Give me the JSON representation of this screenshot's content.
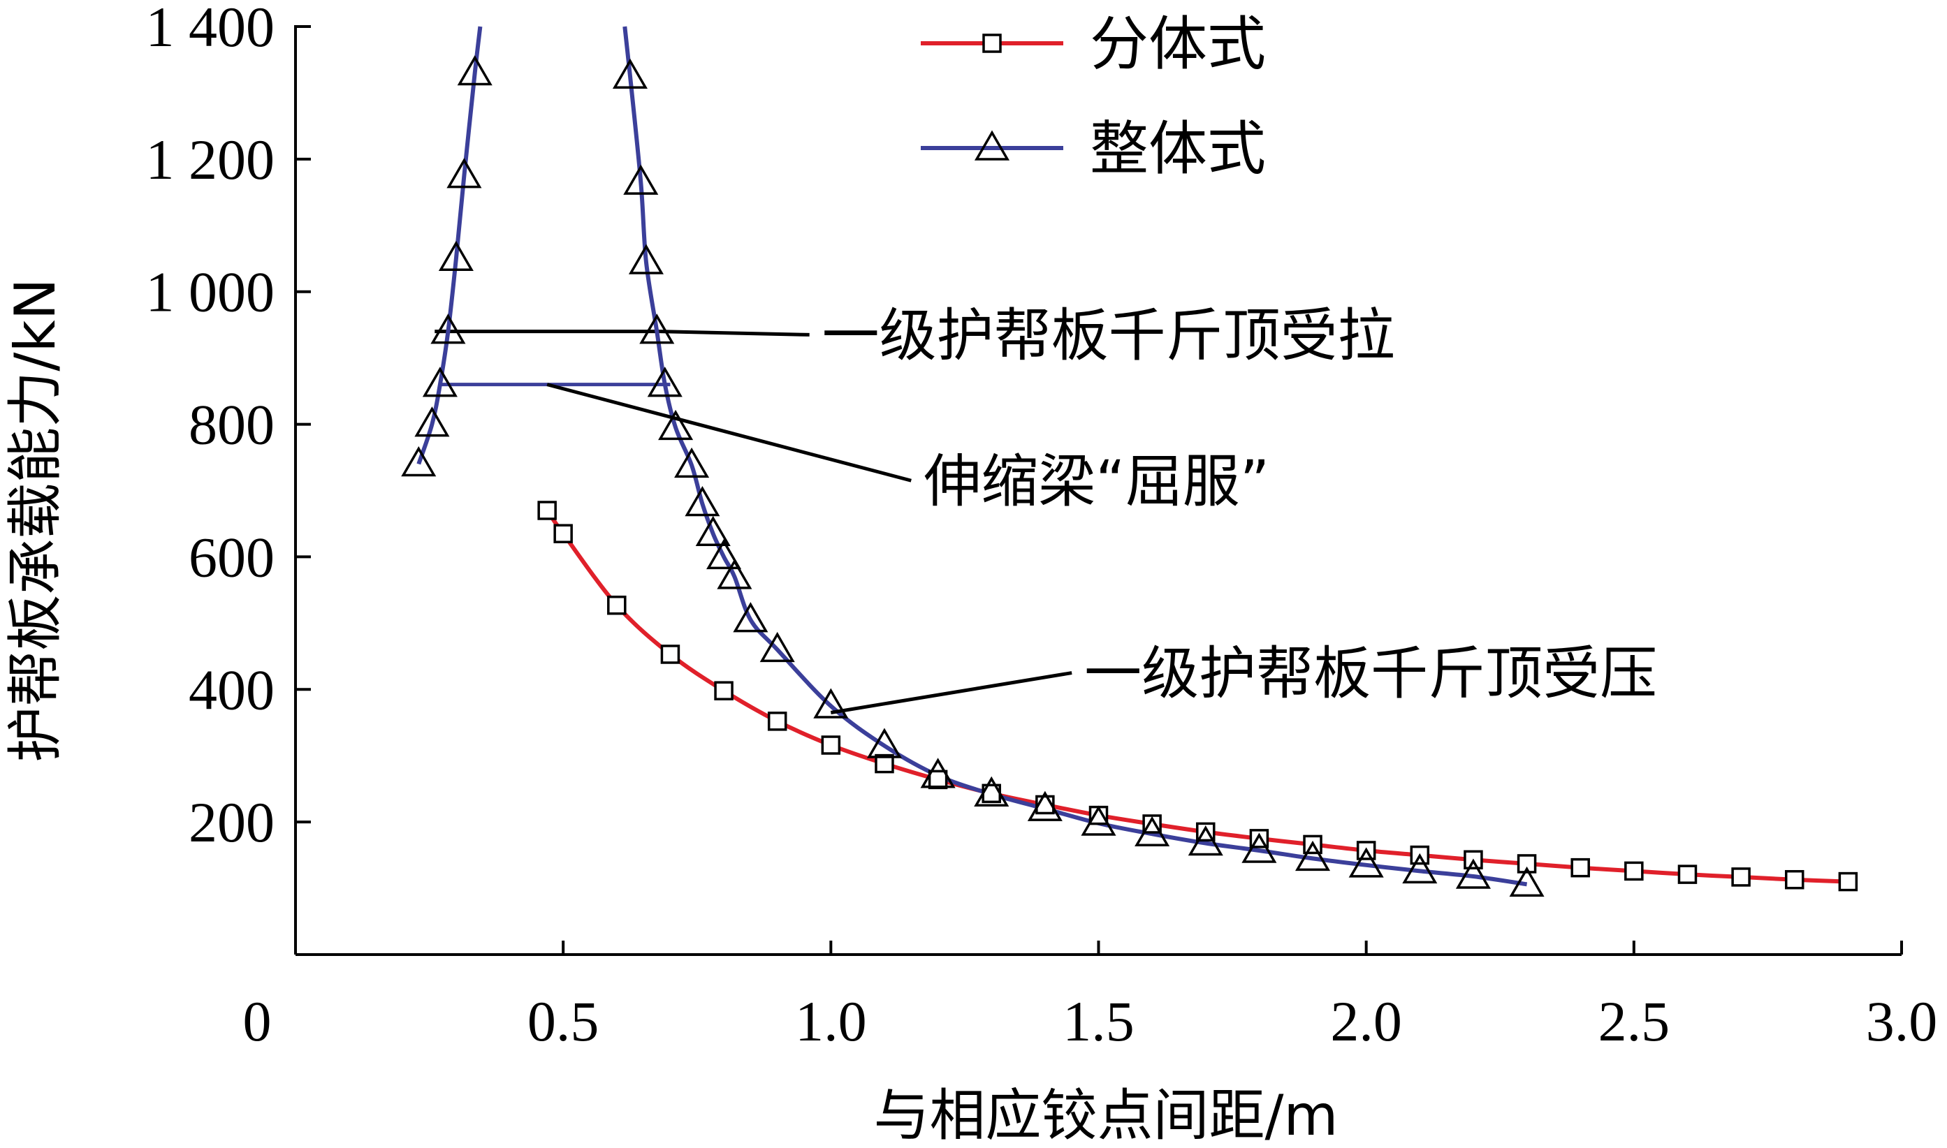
{
  "chart_data": {
    "type": "line",
    "xlabel": "与相应铰点间距/m",
    "ylabel": "护帮板承载能力/kN",
    "xlim": [
      0,
      3.0
    ],
    "ylim": [
      0,
      1400
    ],
    "x_ticks": [
      0,
      0.5,
      1.0,
      1.5,
      2.0,
      2.5,
      3.0
    ],
    "x_tick_labels": [
      "0",
      "0.5",
      "1.0",
      "1.5",
      "2.0",
      "2.5",
      "3.0"
    ],
    "y_ticks": [
      200,
      400,
      600,
      800,
      1000,
      1200,
      1400
    ],
    "y_tick_labels": [
      "200",
      "400",
      "600",
      "800",
      "1 000",
      "1 200",
      "1 400"
    ],
    "grid": false,
    "legend_position": "top-right",
    "colors": {
      "fenti": "#e0202a",
      "zhengti": "#3b3f9a",
      "marker": "#000000",
      "annot": "#000000"
    },
    "series": [
      {
        "name": "分体式",
        "marker": "square",
        "x": [
          0.47,
          0.5,
          0.6,
          0.7,
          0.8,
          0.9,
          1.0,
          1.1,
          1.2,
          1.3,
          1.4,
          1.5,
          1.6,
          1.7,
          1.8,
          1.9,
          2.0,
          2.1,
          2.2,
          2.3,
          2.4,
          2.5,
          2.6,
          2.7,
          2.8,
          2.9
        ],
        "y": [
          670,
          635,
          527,
          453,
          398,
          352,
          316,
          288,
          264,
          243,
          226,
          210,
          197,
          185,
          175,
          166,
          157,
          150,
          143,
          137,
          131,
          126,
          121,
          117,
          113,
          110
        ]
      },
      {
        "name": "整体式",
        "marker": "triangle",
        "branches": [
          {
            "x": [
              0.23,
              0.255,
              0.27,
              0.285,
              0.3,
              0.315,
              0.335,
              0.345
            ],
            "y": [
              740,
              800,
              860,
              940,
              1050,
              1175,
              1330,
              1400
            ]
          },
          {
            "x": [
              0.615,
              0.625,
              0.645,
              0.655,
              0.675,
              0.69,
              0.71,
              0.74,
              0.76,
              0.78,
              0.8,
              0.82,
              0.85,
              0.9,
              1.0,
              1.1,
              1.2,
              1.3,
              1.4,
              1.5,
              1.6,
              1.7,
              1.8,
              1.9,
              2.0,
              2.1,
              2.2,
              2.3
            ],
            "y": [
              1400,
              1325,
              1165,
              1045,
              940,
              860,
              795,
              738,
              680,
              635,
              600,
              570,
              505,
              460,
              375,
              315,
              270,
              242,
              220,
              198,
              182,
              168,
              157,
              145,
              135,
              126,
              118,
              106
            ]
          }
        ],
        "marker_points": [
          [
            0.23,
            740
          ],
          [
            0.255,
            800
          ],
          [
            0.27,
            860
          ],
          [
            0.285,
            940
          ],
          [
            0.3,
            1050
          ],
          [
            0.315,
            1175
          ],
          [
            0.335,
            1330
          ],
          [
            0.625,
            1325
          ],
          [
            0.645,
            1165
          ],
          [
            0.655,
            1045
          ],
          [
            0.675,
            940
          ],
          [
            0.69,
            860
          ],
          [
            0.71,
            795
          ],
          [
            0.74,
            738
          ],
          [
            0.76,
            680
          ],
          [
            0.78,
            635
          ],
          [
            0.8,
            600
          ],
          [
            0.82,
            570
          ],
          [
            0.85,
            505
          ],
          [
            0.9,
            460
          ],
          [
            1.0,
            375
          ],
          [
            1.1,
            315
          ],
          [
            1.2,
            270
          ],
          [
            1.3,
            242
          ],
          [
            1.4,
            220
          ],
          [
            1.5,
            198
          ],
          [
            1.6,
            182
          ],
          [
            1.7,
            168
          ],
          [
            1.8,
            157
          ],
          [
            1.9,
            145
          ],
          [
            2.0,
            135
          ],
          [
            2.1,
            126
          ],
          [
            2.2,
            118
          ],
          [
            2.3,
            106
          ]
        ]
      }
    ],
    "horizontal_segments": [
      {
        "y": 940,
        "x": [
          0.26,
          0.68
        ],
        "color": "#000000"
      },
      {
        "y": 860,
        "x": [
          0.27,
          0.7
        ],
        "color": "#3b3f9a"
      }
    ],
    "annotations": [
      {
        "text": "一级护帮板千斤顶受拉",
        "from": [
          0.68,
          940
        ],
        "to": [
          0.96,
          935
        ]
      },
      {
        "text": "伸缩梁“屈服”",
        "from": [
          0.47,
          860
        ],
        "to": [
          1.15,
          715
        ]
      },
      {
        "text": "一级护帮板千斤顶受压",
        "from": [
          1.0,
          365
        ],
        "to": [
          1.45,
          425
        ]
      }
    ]
  }
}
